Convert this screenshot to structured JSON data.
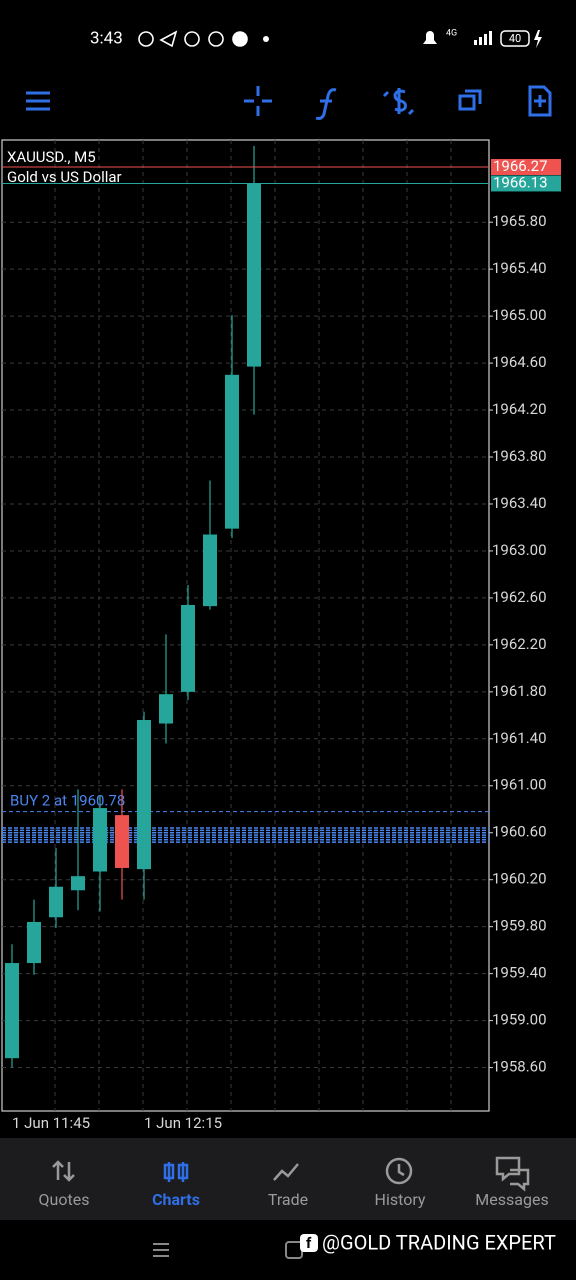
{
  "status_bar": {
    "time": "3:43",
    "network": "4G",
    "battery": "40"
  },
  "chart_data": {
    "type": "candlestick",
    "symbol": "XAUUSD., M5",
    "description": "Gold vs US Dollar",
    "categories": [
      "1 Jun 11:45",
      null,
      null,
      null,
      null,
      null,
      "1 Jun 12:15",
      null,
      null,
      null,
      null,
      null
    ],
    "open": [
      1958.68,
      1959.49,
      1959.88,
      1960.11,
      1960.27,
      1960.75,
      1960.29,
      1961.53,
      1961.8,
      1962.53,
      1963.19,
      1964.57
    ],
    "high": [
      1959.65,
      1960.03,
      1960.47,
      1960.97,
      1960.92,
      1960.97,
      1961.63,
      1962.29,
      1962.71,
      1963.6,
      1965.01,
      1966.45
    ],
    "low": [
      1958.6,
      1959.39,
      1959.79,
      1959.94,
      1959.93,
      1960.03,
      1960.03,
      1961.36,
      1961.73,
      1962.5,
      1963.11,
      1964.16
    ],
    "close": [
      1959.49,
      1959.84,
      1960.14,
      1960.23,
      1960.81,
      1960.3,
      1961.56,
      1961.78,
      1962.54,
      1963.14,
      1964.5,
      1966.13
    ],
    "up_color": "#26a69a",
    "down_color": "#ef5350",
    "ylim": [
      1958.23,
      1966.5
    ],
    "yticks": [
      {
        "value": 1958.6,
        "label": "1958.60"
      },
      {
        "value": 1959.0,
        "label": "1959.00"
      },
      {
        "value": 1959.4,
        "label": "1959.40"
      },
      {
        "value": 1959.8,
        "label": "1959.80"
      },
      {
        "value": 1960.2,
        "label": "1960.20"
      },
      {
        "value": 1960.6,
        "label": "1960.60"
      },
      {
        "value": 1961.0,
        "label": "1961.00"
      },
      {
        "value": 1961.4,
        "label": "1961.40"
      },
      {
        "value": 1961.8,
        "label": "1961.80"
      },
      {
        "value": 1962.2,
        "label": "1962.20"
      },
      {
        "value": 1962.6,
        "label": "1962.60"
      },
      {
        "value": 1963.0,
        "label": "1963.00"
      },
      {
        "value": 1963.4,
        "label": "1963.40"
      },
      {
        "value": 1963.8,
        "label": "1963.80"
      },
      {
        "value": 1964.2,
        "label": "1964.20"
      },
      {
        "value": 1964.6,
        "label": "1964.60"
      },
      {
        "value": 1965.0,
        "label": "1965.00"
      },
      {
        "value": 1965.4,
        "label": "1965.40"
      },
      {
        "value": 1965.8,
        "label": "1965.80"
      }
    ],
    "ask_price": 1966.27,
    "bid_price": 1966.13,
    "order": {
      "label": "BUY 2 at 1960.78",
      "price": 1960.78
    },
    "other_order_prices": [
      1960.64,
      1960.62,
      1960.6,
      1960.58,
      1960.56,
      1960.54,
      1960.52
    ],
    "grid": true
  },
  "bottom_nav": {
    "tabs": [
      "Quotes",
      "Charts",
      "Trade",
      "History",
      "Messages"
    ],
    "active": 1
  },
  "watermark": "@GOLD TRADING EXPERT"
}
